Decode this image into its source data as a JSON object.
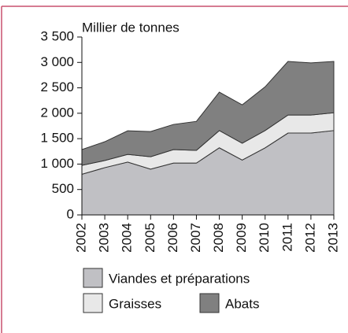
{
  "chart_data": {
    "type": "area",
    "stacked": true,
    "y_label": "Millier de tonnes",
    "x": [
      "2002",
      "2003",
      "2004",
      "2005",
      "2006",
      "2007",
      "2008",
      "2009",
      "2010",
      "2011",
      "2012",
      "2013"
    ],
    "series": [
      {
        "name": "Viandes et préparations",
        "color": "#c0c0c4",
        "values": [
          800,
          930,
          1040,
          900,
          1020,
          1020,
          1320,
          1080,
          1320,
          1610,
          1610,
          1660
        ]
      },
      {
        "name": "Graisses",
        "color": "#e8e8e8",
        "values": [
          175,
          140,
          150,
          245,
          265,
          250,
          340,
          330,
          340,
          355,
          355,
          350
        ]
      },
      {
        "name": "Abats",
        "color": "#808080",
        "values": [
          310,
          370,
          465,
          495,
          495,
          570,
          755,
          755,
          860,
          1055,
          1025,
          1010
        ]
      }
    ],
    "ylim": [
      0,
      3500
    ],
    "yticks": [
      0,
      500,
      {
        "value": 1000,
        "label": "1 000"
      },
      {
        "value": 1500,
        "label": "1 500"
      },
      {
        "value": 2000,
        "label": "2 000"
      },
      {
        "value": 2500,
        "label": "2 500"
      },
      {
        "value": 3000,
        "label": "3 000"
      },
      {
        "value": 3500,
        "label": "3 500"
      }
    ]
  }
}
